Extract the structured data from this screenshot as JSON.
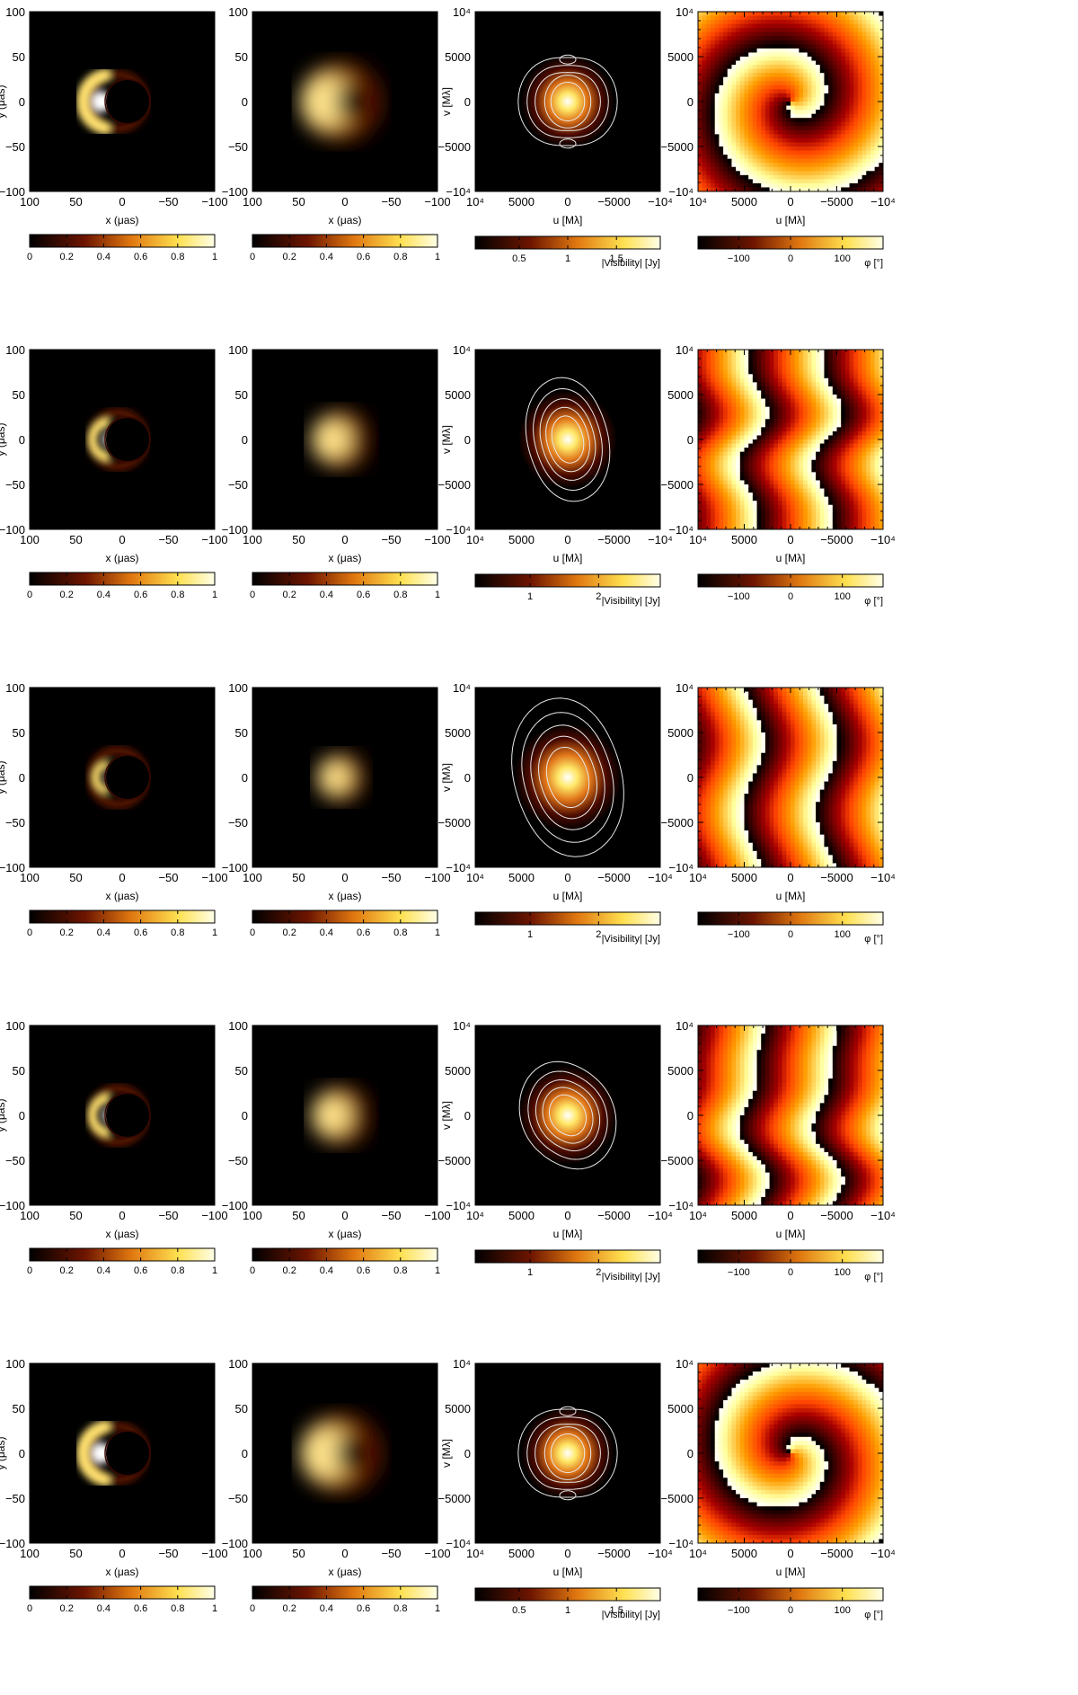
{
  "figure": {
    "rows": [
      {
        "name": "row-1",
        "image_angle_deg": 0,
        "blur": 1.0,
        "vis_spin": 1,
        "phase_style": "spiral",
        "vis_ticks": [
          "0.5",
          "1",
          "1.5"
        ],
        "vis_max_label": 1.5,
        "vis_range": [
          0.05,
          1.95
        ]
      },
      {
        "name": "row-2",
        "image_angle_deg": 0,
        "blur": 1.3,
        "vis_spin": 0,
        "phase_style": "bands",
        "vis_ticks": [
          "1",
          "2"
        ],
        "vis_max_label": 2,
        "vis_range": [
          0.2,
          2.9
        ]
      },
      {
        "name": "row-3",
        "image_angle_deg": 0,
        "blur": 1.6,
        "vis_spin": 0,
        "phase_style": "bands",
        "vis_ticks": [
          "1",
          "2"
        ],
        "vis_max_label": 2,
        "vis_range": [
          0.2,
          2.9
        ]
      },
      {
        "name": "row-4",
        "image_angle_deg": 0,
        "blur": 1.3,
        "vis_spin": 0,
        "phase_style": "bands",
        "vis_ticks": [
          "1",
          "2"
        ],
        "vis_max_label": 2,
        "vis_range": [
          0.2,
          2.9
        ]
      },
      {
        "name": "row-5",
        "image_angle_deg": 0,
        "blur": 1.0,
        "vis_spin": -1,
        "phase_style": "spiral",
        "vis_ticks": [
          "0.5",
          "1",
          "1.5"
        ],
        "vis_max_label": 1.5,
        "vis_range": [
          0.05,
          1.95
        ]
      }
    ],
    "image_panel": {
      "x_ticks": [
        "100",
        "50",
        "0",
        "−50",
        "−100"
      ],
      "y_ticks": [
        "100",
        "50",
        "0",
        "−50",
        "−100"
      ],
      "x_label": "x (μas)",
      "y_label": "y (μas)",
      "colorbar_ticks": [
        "0",
        "0.2",
        "0.4",
        "0.6",
        "0.8",
        "1"
      ]
    },
    "uv_panel": {
      "x_ticks": [
        "10⁴",
        "5000",
        "0",
        "−5000",
        "−10⁴"
      ],
      "y_ticks": [
        "10⁴",
        "5000",
        "0",
        "−5000",
        "−10⁴"
      ],
      "x_label": "u [Mλ]",
      "y_label": "v [Mλ]",
      "vis_colorbar_label": "|Visibility| [Jy]",
      "phase_colorbar_label": "φ [°]",
      "phase_colorbar_ticks": [
        "−100",
        "0",
        "100"
      ]
    },
    "colors": {
      "map_dark": "#000000",
      "map_mid": "#d2691e",
      "map_bright": "#ffff80",
      "map_white": "#ffffff",
      "contour": "#e8e8e8"
    }
  }
}
